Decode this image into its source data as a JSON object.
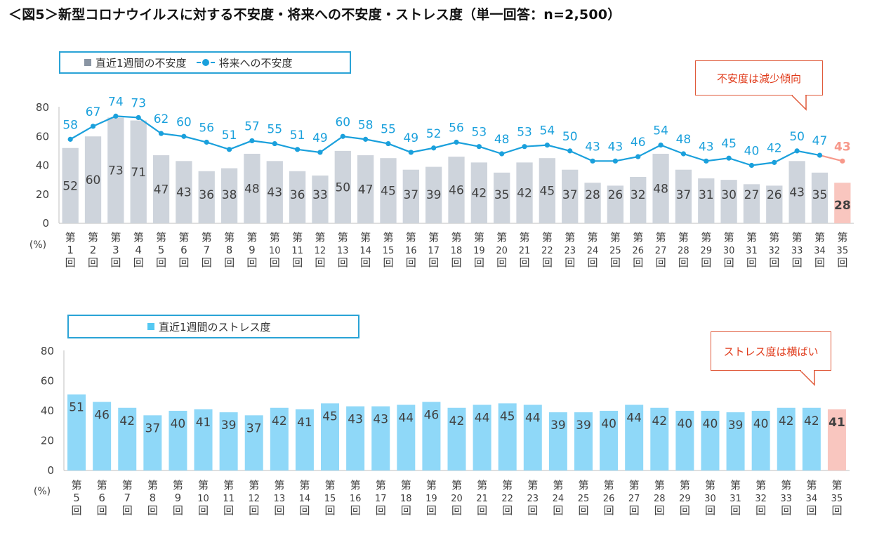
{
  "title": "＜図5＞新型コロナウイルスに対する不安度・将来への不安度・ストレス度（単一回答：n=2,500）",
  "colors": {
    "anxiety_bar": "#ced4dc",
    "future_line": "#1aa0dc",
    "highlight": "#f7988a",
    "highlight_bar": "#f9c6bf",
    "stress_bar": "#8fd8f8",
    "callout_text": "#e03a1a"
  },
  "chart_data": [
    {
      "type": "bar",
      "legend": {
        "bar_label": "直近1週間の不安度",
        "line_label": "将来への不安度"
      },
      "callout": "不安度は減少傾向",
      "unit_label": "(%)",
      "ylim": [
        0,
        80
      ],
      "yticks": [
        0,
        20,
        40,
        60,
        80
      ],
      "categories": [
        "第1回",
        "第2回",
        "第3回",
        "第4回",
        "第5回",
        "第6回",
        "第7回",
        "第8回",
        "第9回",
        "第10回",
        "第11回",
        "第12回",
        "第13回",
        "第14回",
        "第15回",
        "第16回",
        "第17回",
        "第18回",
        "第19回",
        "第20回",
        "第21回",
        "第22回",
        "第23回",
        "第24回",
        "第25回",
        "第26回",
        "第27回",
        "第28回",
        "第29回",
        "第30回",
        "第31回",
        "第32回",
        "第33回",
        "第34回",
        "第35回"
      ],
      "series": [
        {
          "name": "直近1週間の不安度",
          "type": "bar",
          "values": [
            52,
            60,
            73,
            71,
            47,
            43,
            36,
            38,
            48,
            43,
            36,
            33,
            50,
            47,
            45,
            37,
            39,
            46,
            42,
            35,
            42,
            45,
            37,
            28,
            26,
            32,
            48,
            37,
            31,
            30,
            27,
            26,
            43,
            35,
            28
          ]
        },
        {
          "name": "将来への不安度",
          "type": "line",
          "values": [
            58,
            67,
            74,
            73,
            62,
            60,
            56,
            51,
            57,
            55,
            51,
            49,
            60,
            58,
            55,
            49,
            52,
            56,
            53,
            48,
            53,
            54,
            50,
            43,
            43,
            46,
            54,
            48,
            43,
            45,
            40,
            42,
            50,
            47,
            43
          ]
        }
      ]
    },
    {
      "type": "bar",
      "legend": {
        "bar_label": "直近1週間のストレス度"
      },
      "callout": "ストレス度は横ばい",
      "unit_label": "(%)",
      "ylim": [
        0,
        80
      ],
      "yticks": [
        0,
        20,
        40,
        60,
        80
      ],
      "categories": [
        "第5回",
        "第6回",
        "第7回",
        "第8回",
        "第9回",
        "第10回",
        "第11回",
        "第12回",
        "第13回",
        "第14回",
        "第15回",
        "第16回",
        "第17回",
        "第18回",
        "第19回",
        "第20回",
        "第21回",
        "第22回",
        "第23回",
        "第24回",
        "第25回",
        "第26回",
        "第27回",
        "第28回",
        "第29回",
        "第30回",
        "第31回",
        "第32回",
        "第33回",
        "第34回",
        "第35回"
      ],
      "series": [
        {
          "name": "直近1週間のストレス度",
          "type": "bar",
          "values": [
            51,
            46,
            42,
            37,
            40,
            41,
            39,
            37,
            42,
            41,
            45,
            43,
            43,
            44,
            46,
            42,
            44,
            45,
            44,
            39,
            39,
            40,
            44,
            42,
            40,
            40,
            39,
            40,
            42,
            42,
            41
          ]
        }
      ]
    }
  ]
}
